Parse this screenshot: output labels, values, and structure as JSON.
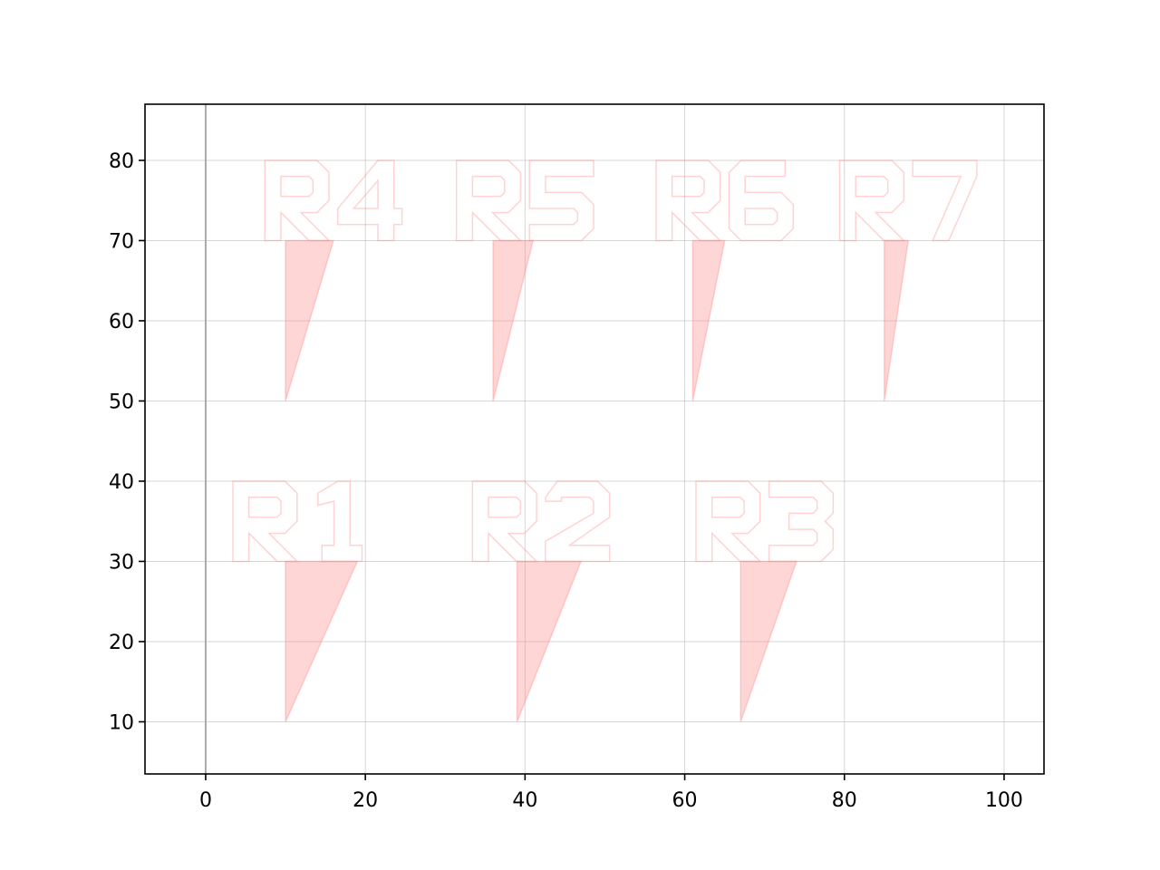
{
  "chart_data": {
    "type": "scatter",
    "title": "",
    "xlabel": "",
    "ylabel": "",
    "xlim": [
      -7.6,
      105
    ],
    "ylim": [
      3.5,
      87
    ],
    "xticks": [
      0,
      20,
      40,
      60,
      80,
      100
    ],
    "yticks": [
      10,
      20,
      30,
      40,
      50,
      60,
      70,
      80
    ],
    "grid": true,
    "vertical_reference_line": {
      "x": 0,
      "color": "#aaaaaa"
    },
    "marker_color": "#ff8080",
    "marker_alpha": 0.32,
    "markers": [
      {
        "label": "R1",
        "x": 10,
        "y": 10,
        "label_x": 12,
        "label_y": 35,
        "top_right_x": 19
      },
      {
        "label": "R2",
        "x": 39,
        "y": 10,
        "label_x": 42,
        "label_y": 35,
        "top_right_x": 47
      },
      {
        "label": "R3",
        "x": 67,
        "y": 10,
        "label_x": 70,
        "label_y": 35,
        "top_right_x": 74
      },
      {
        "label": "R4",
        "x": 10,
        "y": 50,
        "label_x": 16,
        "label_y": 75,
        "top_right_x": 16
      },
      {
        "label": "R5",
        "x": 36,
        "y": 50,
        "label_x": 40,
        "label_y": 75,
        "top_right_x": 41
      },
      {
        "label": "R6",
        "x": 61,
        "y": 50,
        "label_x": 65,
        "label_y": 75,
        "top_right_x": 65
      },
      {
        "label": "R7",
        "x": 85,
        "y": 50,
        "label_x": 88,
        "label_y": 75,
        "top_right_x": 88
      }
    ]
  }
}
